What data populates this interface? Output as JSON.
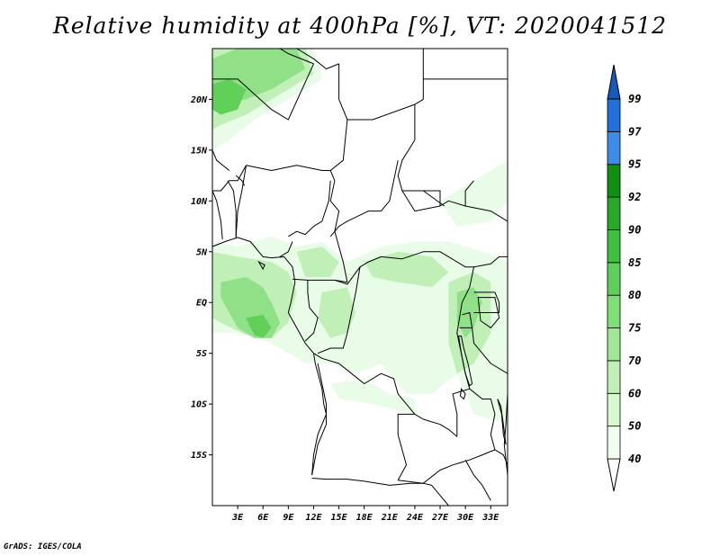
{
  "title": "Relative humidity at 400hPa [%], VT: 2020041512",
  "credit": "GrADS: IGES/COLA",
  "map": {
    "lon_range": [
      0,
      35
    ],
    "lat_range": [
      -20,
      25
    ],
    "x_ticks": [
      {
        "value": 3,
        "label": "3E"
      },
      {
        "value": 6,
        "label": "6E"
      },
      {
        "value": 9,
        "label": "9E"
      },
      {
        "value": 12,
        "label": "12E"
      },
      {
        "value": 15,
        "label": "15E"
      },
      {
        "value": 18,
        "label": "18E"
      },
      {
        "value": 21,
        "label": "21E"
      },
      {
        "value": 24,
        "label": "24E"
      },
      {
        "value": 27,
        "label": "27E"
      },
      {
        "value": 30,
        "label": "30E"
      },
      {
        "value": 33,
        "label": "33E"
      }
    ],
    "y_ticks": [
      {
        "value": 20,
        "label": "20N"
      },
      {
        "value": 15,
        "label": "15N"
      },
      {
        "value": 10,
        "label": "10N"
      },
      {
        "value": 5,
        "label": "5N"
      },
      {
        "value": 0,
        "label": "EQ"
      },
      {
        "value": -5,
        "label": "5S"
      },
      {
        "value": -10,
        "label": "10S"
      },
      {
        "value": -15,
        "label": "15S"
      }
    ]
  },
  "colorbar": {
    "labels": [
      "40",
      "50",
      "60",
      "70",
      "75",
      "80",
      "85",
      "90",
      "92",
      "95",
      "97",
      "99"
    ],
    "colors": [
      "#f0fff0",
      "#d8f8d0",
      "#c0f0b8",
      "#a0e898",
      "#80e078",
      "#5cd058",
      "#40c040",
      "#28a828",
      "#109010",
      "#3c8ce8",
      "#2070d8",
      "#1858b8"
    ],
    "lower_color": "#ffffff",
    "upper_color": "#1858b8"
  },
  "colors": {
    "field_light": "#e8fce8",
    "field_mid": "#c0f0b8",
    "field_high": "#90e088",
    "field_peak": "#60d058",
    "border": "#000000"
  }
}
